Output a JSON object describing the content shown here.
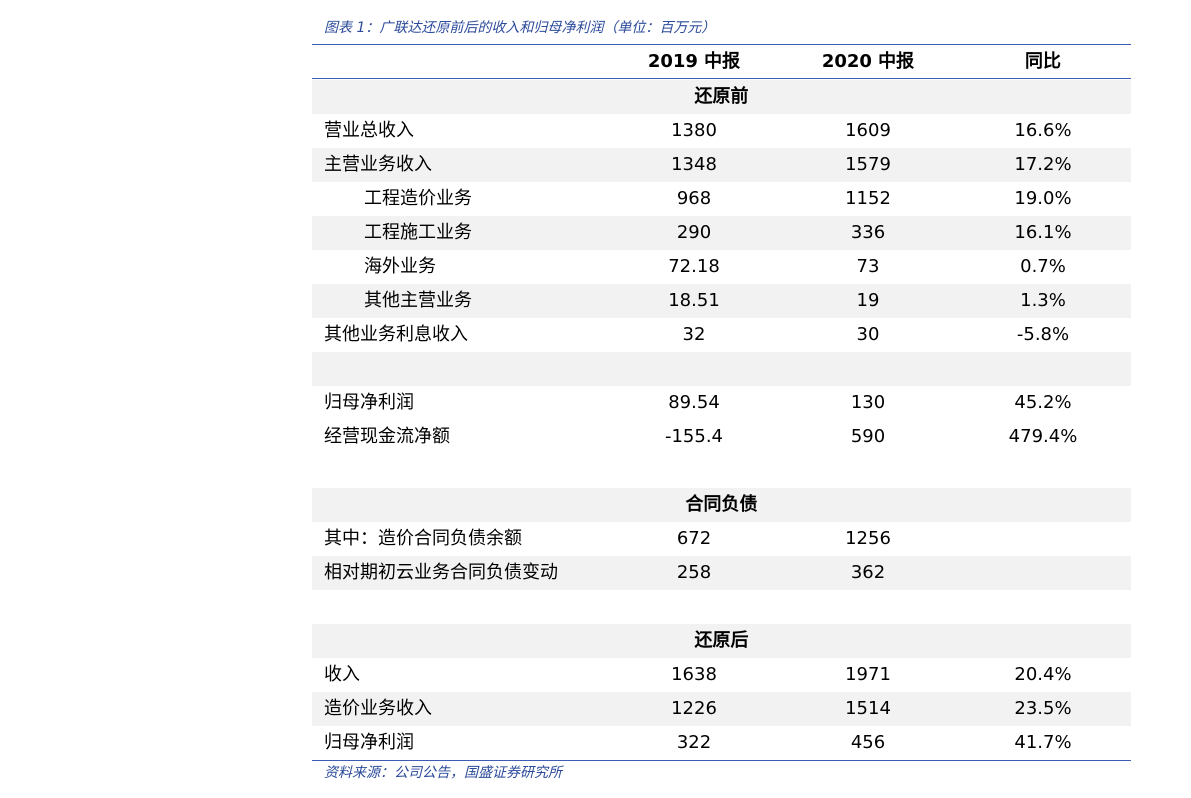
{
  "header": {
    "title": "图表 1：广联达还原前后的收入和归母净利润（单位：百万元）"
  },
  "table": {
    "columns": [
      "2019 中报",
      "2020 中报",
      "同比"
    ],
    "rows": [
      [
        "还原前"
      ],
      [
        "营业总收入",
        "1380",
        "1609",
        "16.6%"
      ],
      [
        "主营业务收入",
        "1348",
        "1579",
        "17.2%"
      ],
      [
        "工程造价业务",
        "968",
        "1152",
        "19.0%"
      ],
      [
        "工程施工业务",
        "290",
        "336",
        "16.1%"
      ],
      [
        "海外业务",
        "72.18",
        "73",
        "0.7%"
      ],
      [
        "其他主营业务",
        "18.51",
        "19",
        "1.3%"
      ],
      [
        "其他业务利息收入",
        "32",
        "30",
        "-5.8%"
      ],
      [
        "归母净利润",
        "89.54",
        "130",
        "45.2%"
      ],
      [
        "经营现金流净额",
        "-155.4",
        "590",
        "479.4%"
      ],
      [
        "合同负债"
      ],
      [
        "其中：造价合同负债余额",
        "672",
        "1256"
      ],
      [
        "相对期初云业务合同负债变动",
        "258",
        "362"
      ],
      [
        "还原后"
      ],
      [
        "收入",
        "1638",
        "1971",
        "20.4%"
      ],
      [
        "造价业务收入",
        "1226",
        "1514",
        "23.5%"
      ],
      [
        "归母净利润",
        "322",
        "456",
        "41.7%"
      ]
    ]
  },
  "footer": {
    "source": "资料来源：公司公告，国盛证券研究所"
  }
}
